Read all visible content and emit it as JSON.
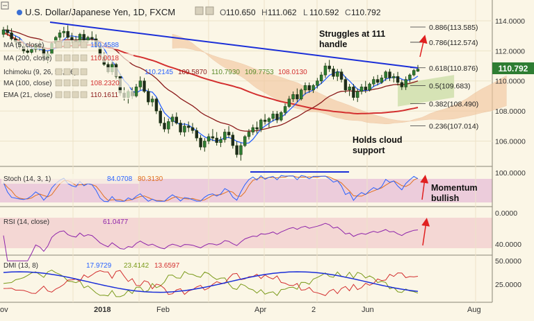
{
  "header": {
    "title": "U.S. Dollar/Japanese Yen, 1D, FXCM",
    "ohlc": [
      {
        "k": "O",
        "v": "110.650"
      },
      {
        "k": "H",
        "v": "111.062"
      },
      {
        "k": "L",
        "v": "110.592"
      },
      {
        "k": "C",
        "v": "110.792"
      }
    ]
  },
  "indicators": [
    {
      "label": "MA (5, close)",
      "values": [
        {
          "text": "110.4588",
          "color": "#2962ff"
        }
      ]
    },
    {
      "label": "MA (200, close)",
      "values": [
        {
          "text": "110.0018",
          "color": "#d32f2f"
        }
      ]
    },
    {
      "label": "Ichimoku (9, 26, 52, 26)",
      "values": [
        {
          "text": "110.2145",
          "color": "#2962ff"
        },
        {
          "text": "109.5870",
          "color": "#8b1a1a"
        },
        {
          "text": "110.7930",
          "color": "#5a8a2a"
        },
        {
          "text": "109.7753",
          "color": "#5a8a2a"
        },
        {
          "text": "108.0130",
          "color": "#d32f2f"
        }
      ]
    },
    {
      "label": "MA (100, close)",
      "values": [
        {
          "text": "108.2320",
          "color": "#d32f2f"
        }
      ]
    },
    {
      "label": "EMA (21, close)",
      "values": [
        {
          "text": "110.1611",
          "color": "#8b1a1a"
        }
      ]
    }
  ],
  "annotations": {
    "struggles": "Struggles at 111 handle",
    "holds": "Holds cloud support",
    "momentum": "Momentum bullish"
  },
  "last_price": "110.792",
  "fibonacci": [
    {
      "label": "0.886(113.585)",
      "price": 113.585
    },
    {
      "label": "0.786(112.574)",
      "price": 112.574
    },
    {
      "label": "0.618(110.876)",
      "price": 110.876
    },
    {
      "label": "0.5(109.683)",
      "price": 109.683
    },
    {
      "label": "0.382(108.490)",
      "price": 108.49
    },
    {
      "label": "0.236(107.014)",
      "price": 107.014
    }
  ],
  "price_axis": [
    "114.0000",
    "112.0000",
    "110.0000",
    "108.0000",
    "106.0000"
  ],
  "stoch": {
    "label": "Stoch (14, 3, 1)",
    "k": "84.0708",
    "d": "80.3130",
    "axis": [
      "100.0000",
      "0.0000"
    ]
  },
  "rsi": {
    "label": "RSI (14, close)",
    "value": "61.0477",
    "axis": [
      "40.0000"
    ]
  },
  "dmi": {
    "label": "DMI (13, 8)",
    "plus": "17.9729",
    "minus": "23.4142",
    "adx": "13.6597",
    "axis": [
      "50.0000",
      "25.0000"
    ]
  },
  "time_axis": [
    "ov",
    "2018",
    "Feb",
    "Apr",
    "2",
    "Jun",
    "Aug"
  ],
  "chart_data": {
    "type": "candlestick",
    "symbol": "USDJPY",
    "timeframe": "1D",
    "ylim": [
      104.5,
      115.2
    ],
    "candles": [
      [
        113.1,
        113.6,
        112.9,
        113.4
      ],
      [
        113.4,
        113.7,
        113.0,
        113.2
      ],
      [
        113.2,
        113.5,
        112.6,
        112.8
      ],
      [
        112.8,
        113.0,
        112.4,
        112.6
      ],
      [
        112.6,
        112.9,
        112.1,
        112.3
      ],
      [
        112.3,
        112.6,
        111.8,
        112.0
      ],
      [
        112.0,
        112.4,
        111.6,
        111.9
      ],
      [
        111.9,
        112.3,
        111.7,
        112.1
      ],
      [
        112.1,
        112.5,
        111.9,
        112.4
      ],
      [
        112.4,
        112.7,
        112.0,
        112.2
      ],
      [
        112.2,
        112.4,
        111.3,
        111.5
      ],
      [
        111.5,
        112.0,
        111.2,
        111.8
      ],
      [
        111.8,
        112.6,
        111.7,
        112.5
      ],
      [
        112.5,
        113.0,
        112.3,
        112.9
      ],
      [
        112.9,
        113.4,
        112.7,
        113.2
      ],
      [
        113.2,
        113.6,
        112.9,
        113.3
      ],
      [
        113.3,
        113.7,
        112.8,
        112.9
      ],
      [
        112.9,
        113.2,
        112.5,
        112.7
      ],
      [
        112.7,
        113.0,
        112.3,
        112.6
      ],
      [
        112.6,
        113.2,
        112.4,
        113.1
      ],
      [
        113.1,
        113.4,
        112.6,
        112.7
      ],
      [
        112.7,
        113.0,
        112.5,
        112.9
      ],
      [
        112.9,
        113.3,
        112.6,
        112.8
      ],
      [
        112.8,
        113.1,
        112.2,
        112.3
      ],
      [
        112.3,
        112.5,
        111.4,
        111.6
      ],
      [
        111.6,
        111.9,
        111.0,
        111.1
      ],
      [
        111.1,
        111.4,
        110.5,
        110.6
      ],
      [
        110.6,
        111.3,
        110.4,
        111.1
      ],
      [
        111.1,
        111.2,
        110.1,
        110.3
      ],
      [
        110.3,
        110.5,
        109.0,
        109.2
      ],
      [
        109.2,
        109.6,
        108.7,
        108.9
      ],
      [
        108.9,
        109.4,
        108.5,
        109.3
      ],
      [
        109.3,
        109.6,
        108.8,
        109.0
      ],
      [
        109.0,
        109.8,
        108.9,
        109.6
      ],
      [
        109.6,
        110.3,
        109.4,
        110.0
      ],
      [
        110.0,
        110.2,
        109.2,
        109.3
      ],
      [
        109.3,
        109.5,
        108.4,
        108.6
      ],
      [
        108.6,
        109.0,
        108.3,
        108.8
      ],
      [
        108.8,
        108.9,
        107.8,
        108.0
      ],
      [
        108.0,
        108.2,
        107.0,
        107.2
      ],
      [
        107.2,
        107.6,
        106.6,
        106.8
      ],
      [
        106.8,
        107.5,
        106.5,
        107.3
      ],
      [
        107.3,
        107.8,
        107.0,
        107.6
      ],
      [
        107.6,
        107.9,
        107.1,
        107.2
      ],
      [
        107.2,
        107.4,
        106.4,
        106.6
      ],
      [
        106.6,
        107.2,
        106.3,
        107.0
      ],
      [
        107.0,
        107.3,
        106.6,
        106.9
      ],
      [
        106.9,
        107.2,
        106.5,
        106.7
      ],
      [
        106.7,
        106.9,
        106.0,
        106.2
      ],
      [
        106.2,
        106.4,
        105.4,
        105.6
      ],
      [
        105.6,
        106.2,
        105.3,
        106.0
      ],
      [
        106.0,
        106.5,
        105.8,
        106.3
      ],
      [
        106.3,
        106.8,
        106.0,
        106.2
      ],
      [
        106.2,
        106.6,
        105.7,
        105.9
      ],
      [
        105.9,
        106.3,
        105.6,
        106.1
      ],
      [
        106.1,
        106.8,
        105.9,
        106.6
      ],
      [
        106.6,
        107.0,
        106.2,
        106.4
      ],
      [
        106.4,
        106.6,
        105.5,
        105.7
      ],
      [
        105.7,
        106.0,
        104.9,
        105.1
      ],
      [
        105.1,
        105.9,
        104.7,
        105.7
      ],
      [
        105.7,
        106.4,
        105.6,
        106.3
      ],
      [
        106.3,
        106.8,
        106.1,
        106.6
      ],
      [
        106.6,
        107.1,
        106.4,
        106.9
      ],
      [
        106.9,
        107.3,
        106.5,
        106.8
      ],
      [
        106.8,
        107.5,
        106.6,
        107.4
      ],
      [
        107.4,
        107.8,
        107.1,
        107.3
      ],
      [
        107.3,
        107.6,
        106.9,
        107.5
      ],
      [
        107.5,
        108.0,
        107.3,
        107.8
      ],
      [
        107.8,
        108.0,
        107.2,
        107.4
      ],
      [
        107.4,
        108.0,
        107.3,
        107.9
      ],
      [
        107.9,
        108.5,
        107.7,
        108.3
      ],
      [
        108.3,
        109.0,
        108.2,
        108.8
      ],
      [
        108.8,
        109.3,
        108.6,
        109.1
      ],
      [
        109.1,
        109.5,
        108.6,
        108.8
      ],
      [
        108.8,
        109.5,
        108.7,
        109.4
      ],
      [
        109.4,
        109.9,
        109.1,
        109.7
      ],
      [
        109.7,
        109.9,
        109.2,
        109.4
      ],
      [
        109.4,
        109.8,
        109.2,
        109.7
      ],
      [
        109.7,
        110.2,
        109.5,
        110.0
      ],
      [
        110.0,
        110.6,
        109.8,
        110.4
      ],
      [
        110.4,
        111.2,
        110.2,
        111.0
      ],
      [
        111.0,
        111.4,
        110.6,
        110.8
      ],
      [
        110.8,
        111.0,
        110.1,
        110.3
      ],
      [
        110.3,
        110.8,
        110.0,
        110.6
      ],
      [
        110.6,
        110.8,
        109.9,
        110.1
      ],
      [
        110.1,
        110.3,
        109.2,
        109.4
      ],
      [
        109.4,
        109.8,
        109.0,
        109.6
      ],
      [
        109.6,
        109.8,
        108.7,
        108.9
      ],
      [
        108.9,
        109.5,
        108.6,
        109.3
      ],
      [
        109.3,
        109.8,
        109.1,
        109.6
      ],
      [
        109.6,
        110.0,
        109.2,
        109.4
      ],
      [
        109.4,
        109.9,
        109.3,
        109.8
      ],
      [
        109.8,
        110.3,
        109.6,
        110.1
      ],
      [
        110.1,
        110.4,
        109.7,
        109.9
      ],
      [
        109.9,
        110.4,
        109.8,
        110.2
      ],
      [
        110.2,
        110.7,
        110.0,
        110.6
      ],
      [
        110.6,
        110.8,
        110.0,
        110.2
      ],
      [
        110.2,
        110.5,
        109.9,
        110.3
      ],
      [
        110.3,
        110.6,
        109.7,
        109.9
      ],
      [
        109.9,
        110.1,
        109.4,
        109.6
      ],
      [
        109.6,
        110.3,
        109.4,
        110.1
      ],
      [
        110.1,
        110.5,
        109.9,
        110.4
      ],
      [
        110.4,
        110.8,
        110.3,
        110.7
      ],
      [
        110.65,
        111.062,
        110.592,
        110.792
      ]
    ]
  }
}
